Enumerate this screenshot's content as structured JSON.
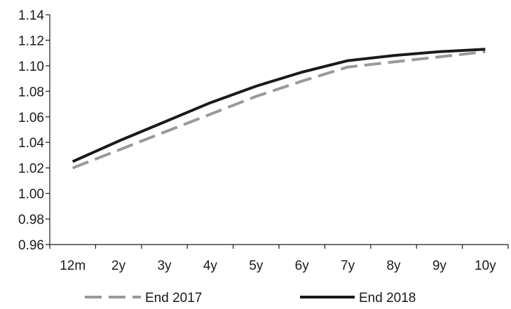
{
  "chart_data": {
    "type": "line",
    "title": "",
    "xlabel": "",
    "ylabel": "",
    "categories": [
      "12m",
      "2y",
      "3y",
      "4y",
      "5y",
      "6y",
      "7y",
      "8y",
      "9y",
      "10y"
    ],
    "ylim": [
      0.96,
      1.14
    ],
    "yticks": [
      "0.96",
      "0.98",
      "1.00",
      "1.02",
      "1.04",
      "1.06",
      "1.08",
      "1.10",
      "1.12",
      "1.14"
    ],
    "grid": false,
    "legend_position": "bottom",
    "series": [
      {
        "name": "End 2017",
        "color": "#999999",
        "style": "dashed",
        "values": [
          1.02,
          1.034,
          1.048,
          1.062,
          1.076,
          1.088,
          1.099,
          1.103,
          1.107,
          1.111
        ]
      },
      {
        "name": "End 2018",
        "color": "#1a1a1a",
        "style": "solid",
        "values": [
          1.025,
          1.041,
          1.056,
          1.071,
          1.084,
          1.095,
          1.104,
          1.108,
          1.111,
          1.113
        ]
      }
    ]
  }
}
